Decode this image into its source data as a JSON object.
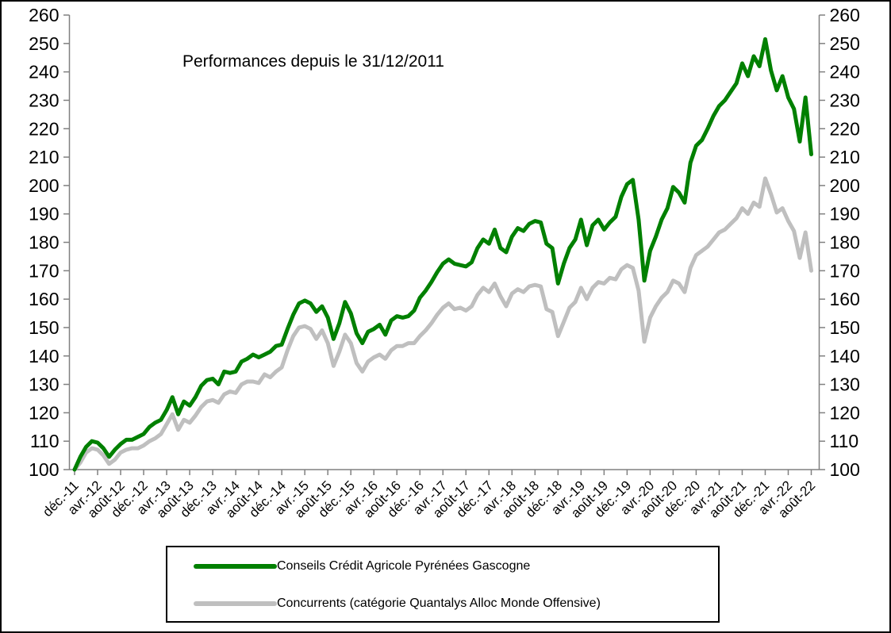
{
  "title": "Performances depuis le 31/12/2011",
  "legend": [
    {
      "label": "Conseils Crédit Agricole Pyrénées Gascogne",
      "color": "#008000"
    },
    {
      "label": "Concurrents (catégorie Quantalys Alloc Monde Offensive)",
      "color": "#BFBFBF"
    }
  ],
  "chart_data": {
    "type": "line",
    "title": "Performances depuis le 31/12/2011",
    "x_unit": "month",
    "x_start": "déc.-11",
    "x_end": "août-22",
    "x_ticks_every_months": 4,
    "x_tick_labels": [
      "déc.-11",
      "avr.-12",
      "août-12",
      "déc.-12",
      "avr.-13",
      "août-13",
      "déc.-13",
      "avr.-14",
      "août-14",
      "déc.-14",
      "avr.-15",
      "août-15",
      "déc.-15",
      "avr.-16",
      "août-16",
      "déc.-16",
      "avr.-17",
      "août-17",
      "déc.-17",
      "avr.-18",
      "août-18",
      "déc.-18",
      "avr.-19",
      "août-19",
      "déc.-19",
      "avr.-20",
      "août-20",
      "déc.-20",
      "avr.-21",
      "août-21",
      "déc.-21",
      "avr.-22",
      "août-22"
    ],
    "ylim": [
      100,
      260
    ],
    "y_step": 10,
    "grid": false,
    "y_axis_both_sides": true,
    "legend_position": "bottom",
    "axis_color": "#808080",
    "tick_label_color": "#000000",
    "series": [
      {
        "name": "Conseils Crédit Agricole Pyrénées Gascogne",
        "color": "#008000",
        "values": [
          100,
          104.5,
          108,
          110,
          109.5,
          107.5,
          104.5,
          107,
          109,
          110.5,
          110.5,
          111.5,
          112.5,
          115,
          116.5,
          117.5,
          121,
          125.5,
          119.5,
          124,
          122.5,
          125.5,
          129.5,
          131.5,
          132,
          130,
          134.5,
          134,
          134.5,
          138,
          139,
          140.5,
          139.5,
          140.5,
          141.5,
          143.5,
          144,
          149.5,
          154.5,
          158.5,
          159.5,
          158.5,
          155.5,
          157.5,
          153.5,
          146,
          151.5,
          159,
          155,
          148,
          144.5,
          148.5,
          149.5,
          151,
          147.5,
          152.5,
          154,
          153.5,
          154,
          156,
          160.5,
          163,
          166,
          169.5,
          172.5,
          174,
          172.5,
          172,
          171.5,
          173,
          178,
          181,
          179.5,
          184.5,
          178,
          176.5,
          182,
          185,
          184,
          186.5,
          187.5,
          187,
          179.5,
          178,
          165.5,
          172.5,
          178,
          181,
          188,
          179,
          186,
          188,
          184.5,
          187,
          189,
          196,
          200.5,
          202,
          188,
          166.5,
          177,
          182,
          188,
          192,
          199.5,
          197.5,
          194,
          208,
          214,
          216,
          220,
          224.5,
          228,
          230,
          233,
          236,
          243,
          238.5,
          245.5,
          242,
          251.5,
          240.5,
          233.5,
          238.5,
          231,
          227,
          215.5,
          231,
          211
        ]
      },
      {
        "name": "Concurrents (catégorie Quantalys Alloc Monde Offensive)",
        "color": "#BFBFBF",
        "values": [
          100,
          102.5,
          106,
          107.5,
          107,
          105,
          102,
          103.5,
          106,
          107,
          107.5,
          107.5,
          108.5,
          110,
          111,
          112.5,
          116,
          119.5,
          114,
          117.5,
          116.5,
          119,
          122,
          124,
          124.5,
          123.5,
          126.5,
          127.5,
          127,
          130,
          131,
          131,
          130.5,
          133.5,
          132.5,
          134.5,
          136,
          142,
          147,
          150,
          150.5,
          149.5,
          146,
          149,
          144.5,
          136.5,
          141.5,
          147.5,
          144.5,
          137.5,
          134.5,
          138,
          139.5,
          140.5,
          139,
          142,
          143.5,
          143.5,
          144.5,
          144.5,
          147,
          149,
          151.5,
          154.5,
          157,
          158.5,
          156.5,
          157,
          156,
          157.5,
          161.5,
          164,
          162.5,
          165.5,
          161,
          157.5,
          162,
          163.5,
          162.5,
          164.5,
          165,
          164.5,
          156.5,
          155.5,
          147,
          152,
          157,
          159,
          164,
          160,
          164,
          166,
          165.5,
          167.5,
          167,
          170.5,
          172,
          171,
          163,
          145,
          153.5,
          157.5,
          160.5,
          162.5,
          166.5,
          165.5,
          162.5,
          171,
          175.5,
          177,
          178.5,
          181,
          183.5,
          184.5,
          186.5,
          188.5,
          192,
          190,
          194,
          192.5,
          202.5,
          197,
          190.5,
          192,
          187.5,
          184,
          174.5,
          183.5,
          170
        ]
      }
    ]
  }
}
